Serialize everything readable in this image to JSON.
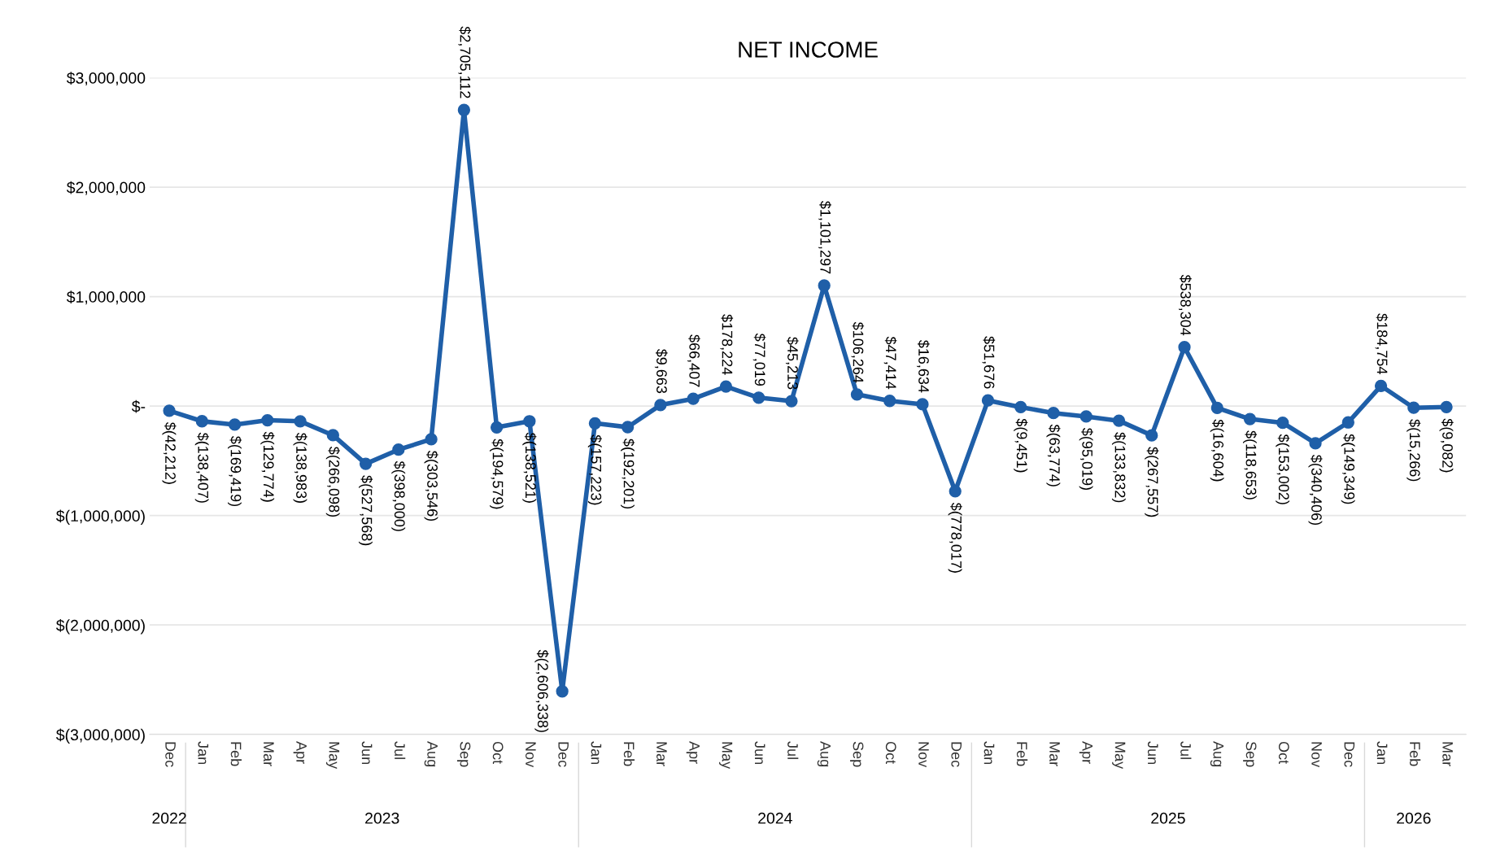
{
  "chart_data": {
    "type": "line",
    "title": "NET INCOME",
    "categories": [
      "Dec",
      "Jan",
      "Feb",
      "Mar",
      "Apr",
      "May",
      "Jun",
      "Jul",
      "Aug",
      "Sep",
      "Oct",
      "Nov",
      "Dec",
      "Jan",
      "Feb",
      "Mar",
      "Apr",
      "May",
      "Jun",
      "Jul",
      "Aug",
      "Sep",
      "Oct",
      "Nov",
      "Dec",
      "Jan",
      "Feb",
      "Mar",
      "Apr",
      "May",
      "Jun",
      "Jul",
      "Aug",
      "Sep",
      "Oct",
      "Nov",
      "Dec",
      "Jan",
      "Feb",
      "Mar"
    ],
    "series": [
      {
        "color": "#1f5fa8",
        "values": [
          -42212,
          -138407,
          -169419,
          -129774,
          -138983,
          -266098,
          -527568,
          -398000,
          -303546,
          2705112,
          -194579,
          -138521,
          -2606338,
          -157223,
          -192201,
          9663,
          66407,
          178224,
          77019,
          45213,
          1101297,
          106264,
          47414,
          16634,
          -778017,
          51676,
          -9451,
          -63774,
          -95019,
          -133832,
          -267557,
          538304,
          -16604,
          -118653,
          -153002,
          -340406,
          -149349,
          184754,
          -15266,
          -9082
        ],
        "value_labels": [
          "$(42,212)",
          "$(138,407)",
          "$(169,419)",
          "$(129,774)",
          "$(138,983)",
          "$(266,098)",
          "$(527,568)",
          "$(398,000)",
          "$(303,546)",
          "$2,705,112",
          "$(194,579)",
          "$(138,521)",
          "$(2,606,338)",
          "$(157,223)",
          "$(192,201)",
          "$9,663",
          "$66,407",
          "$178,224",
          "$77,019",
          "$45,213",
          "$1,101,297",
          "$106,264",
          "$47,414",
          "$16,634",
          "$(778,017)",
          "$51,676",
          "$(9,451)",
          "$(63,774)",
          "$(95,019)",
          "$(133,832)",
          "$(267,557)",
          "$538,304",
          "$(16,604)",
          "$(118,653)",
          "$(153,002)",
          "$(340,406)",
          "$(149,349)",
          "$184,754",
          "$(15,266)",
          "$(9,082)"
        ]
      }
    ],
    "ylim": [
      -3000000,
      3000000
    ],
    "yticks": [
      {
        "value": -3000000,
        "label": "$(3,000,000)"
      },
      {
        "value": -2000000,
        "label": "$(2,000,000)"
      },
      {
        "value": -1000000,
        "label": "$(1,000,000)"
      },
      {
        "value": 0,
        "label": "$-"
      },
      {
        "value": 1000000,
        "label": "$1,000,000"
      },
      {
        "value": 2000000,
        "label": "$2,000,000"
      },
      {
        "value": 3000000,
        "label": "$3,000,000"
      }
    ],
    "annotations": [
      "2022",
      "2023",
      "2024",
      "2025",
      "2026"
    ],
    "grid": "y",
    "marker": "circle",
    "line_style": "solid"
  }
}
